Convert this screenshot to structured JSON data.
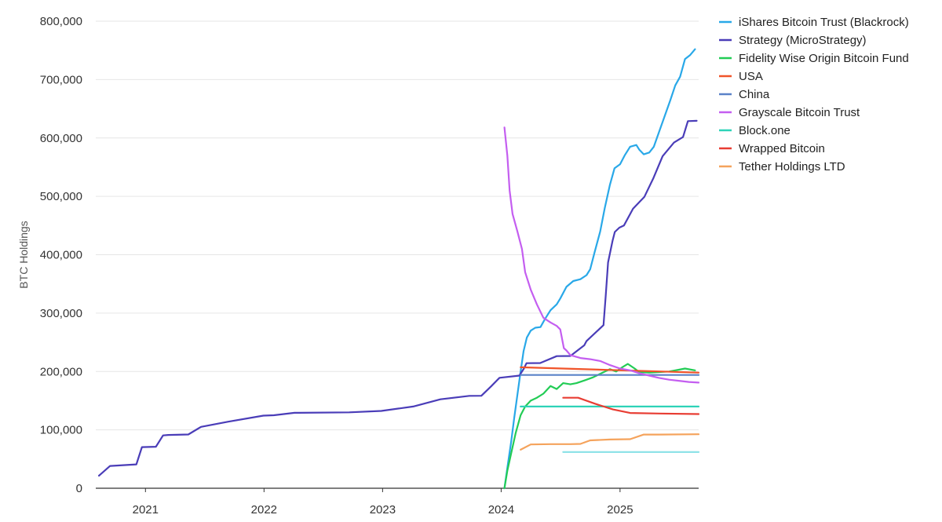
{
  "chart_data": {
    "type": "line",
    "title": "",
    "xlabel": "",
    "ylabel": "BTC Holdings",
    "x_ticks": [
      "2021",
      "2022",
      "2023",
      "2024",
      "2025"
    ],
    "y_ticks": [
      "0",
      "100,000",
      "200,000",
      "300,000",
      "400,000",
      "500,000",
      "600,000",
      "700,000",
      "800,000"
    ],
    "xlim": [
      "2020-08-01",
      "2025-08-31"
    ],
    "ylim": [
      0,
      800000
    ],
    "grid": "horizontal",
    "legend_position": "top-right",
    "series": [
      {
        "name": "iShares Bitcoin Trust (Blackrock)",
        "color": "#29a8e8",
        "points": [
          [
            "2024-01-11",
            0
          ],
          [
            "2024-01-20",
            35000
          ],
          [
            "2024-02-01",
            80000
          ],
          [
            "2024-02-10",
            120000
          ],
          [
            "2024-02-20",
            160000
          ],
          [
            "2024-03-01",
            200000
          ],
          [
            "2024-03-10",
            235000
          ],
          [
            "2024-03-20",
            258000
          ],
          [
            "2024-04-01",
            270000
          ],
          [
            "2024-04-15",
            275000
          ],
          [
            "2024-05-01",
            276000
          ],
          [
            "2024-05-15",
            290000
          ],
          [
            "2024-06-01",
            305000
          ],
          [
            "2024-06-20",
            315000
          ],
          [
            "2024-07-01",
            325000
          ],
          [
            "2024-07-20",
            345000
          ],
          [
            "2024-08-10",
            355000
          ],
          [
            "2024-09-01",
            358000
          ],
          [
            "2024-09-20",
            365000
          ],
          [
            "2024-10-01",
            375000
          ],
          [
            "2024-10-15",
            405000
          ],
          [
            "2024-11-01",
            440000
          ],
          [
            "2024-11-15",
            480000
          ],
          [
            "2024-12-01",
            520000
          ],
          [
            "2024-12-15",
            548000
          ],
          [
            "2025-01-01",
            555000
          ],
          [
            "2025-01-15",
            570000
          ],
          [
            "2025-02-01",
            585000
          ],
          [
            "2025-02-20",
            588000
          ],
          [
            "2025-03-01",
            580000
          ],
          [
            "2025-03-15",
            572000
          ],
          [
            "2025-04-01",
            575000
          ],
          [
            "2025-04-15",
            585000
          ],
          [
            "2025-05-01",
            610000
          ],
          [
            "2025-05-20",
            640000
          ],
          [
            "2025-06-05",
            665000
          ],
          [
            "2025-06-20",
            690000
          ],
          [
            "2025-07-05",
            705000
          ],
          [
            "2025-07-20",
            735000
          ],
          [
            "2025-08-05",
            742000
          ],
          [
            "2025-08-20",
            752000
          ]
        ]
      },
      {
        "name": "Strategy (MicroStrategy)",
        "color": "#4a3db8",
        "points": [
          [
            "2020-08-11",
            21454
          ],
          [
            "2020-09-14",
            38250
          ],
          [
            "2020-12-04",
            40824
          ],
          [
            "2020-12-21",
            70470
          ],
          [
            "2021-02-02",
            71079
          ],
          [
            "2021-02-24",
            90531
          ],
          [
            "2021-03-12",
            91326
          ],
          [
            "2021-05-13",
            92079
          ],
          [
            "2021-06-21",
            105085
          ],
          [
            "2021-09-13",
            114042
          ],
          [
            "2021-12-30",
            124391
          ],
          [
            "2022-01-31",
            125051
          ],
          [
            "2022-04-05",
            129218
          ],
          [
            "2022-09-20",
            130000
          ],
          [
            "2022-12-28",
            132500
          ],
          [
            "2023-04-05",
            140000
          ],
          [
            "2023-06-28",
            152333
          ],
          [
            "2023-09-25",
            158245
          ],
          [
            "2023-11-01",
            158400
          ],
          [
            "2023-12-01",
            174530
          ],
          [
            "2023-12-27",
            189150
          ],
          [
            "2024-02-26",
            193000
          ],
          [
            "2024-03-11",
            205000
          ],
          [
            "2024-03-19",
            214246
          ],
          [
            "2024-04-30",
            214400
          ],
          [
            "2024-06-20",
            226331
          ],
          [
            "2024-08-01",
            226500
          ],
          [
            "2024-09-13",
            244800
          ],
          [
            "2024-09-20",
            252220
          ],
          [
            "2024-11-11",
            279420
          ],
          [
            "2024-11-18",
            331200
          ],
          [
            "2024-11-25",
            386700
          ],
          [
            "2024-12-09",
            423650
          ],
          [
            "2024-12-16",
            439000
          ],
          [
            "2024-12-30",
            446400
          ],
          [
            "2025-01-13",
            450000
          ],
          [
            "2025-02-10",
            478740
          ],
          [
            "2025-03-17",
            499226
          ],
          [
            "2025-04-14",
            531644
          ],
          [
            "2025-05-12",
            568840
          ],
          [
            "2025-06-16",
            592100
          ],
          [
            "2025-07-14",
            601550
          ],
          [
            "2025-07-29",
            628791
          ],
          [
            "2025-08-25",
            629376
          ]
        ]
      },
      {
        "name": "Fidelity Wise Origin Bitcoin Fund",
        "color": "#22cc55",
        "points": [
          [
            "2024-01-11",
            0
          ],
          [
            "2024-01-20",
            30000
          ],
          [
            "2024-02-01",
            60000
          ],
          [
            "2024-02-15",
            95000
          ],
          [
            "2024-03-01",
            125000
          ],
          [
            "2024-03-15",
            140000
          ],
          [
            "2024-04-01",
            150000
          ],
          [
            "2024-04-20",
            155000
          ],
          [
            "2024-05-10",
            162000
          ],
          [
            "2024-06-01",
            175000
          ],
          [
            "2024-06-20",
            170000
          ],
          [
            "2024-07-10",
            180000
          ],
          [
            "2024-08-01",
            178000
          ],
          [
            "2024-08-20",
            180000
          ],
          [
            "2024-09-15",
            185000
          ],
          [
            "2024-10-10",
            190000
          ],
          [
            "2024-11-01",
            196000
          ],
          [
            "2024-12-01",
            204000
          ],
          [
            "2024-12-20",
            200000
          ],
          [
            "2025-01-10",
            208000
          ],
          [
            "2025-01-25",
            213000
          ],
          [
            "2025-02-15",
            205000
          ],
          [
            "2025-03-01",
            199000
          ],
          [
            "2025-04-01",
            198000
          ],
          [
            "2025-05-01",
            199000
          ],
          [
            "2025-06-01",
            200000
          ],
          [
            "2025-07-01",
            203000
          ],
          [
            "2025-07-20",
            205000
          ],
          [
            "2025-08-20",
            202000
          ]
        ]
      },
      {
        "name": "USA",
        "color": "#f0542a",
        "points": [
          [
            "2024-03-01",
            207189
          ],
          [
            "2025-08-31",
            198012
          ]
        ]
      },
      {
        "name": "China",
        "color": "#5a82c8",
        "points": [
          [
            "2024-03-01",
            194000
          ],
          [
            "2025-08-31",
            194000
          ]
        ]
      },
      {
        "name": "Grayscale Bitcoin Trust",
        "color": "#c45ef0",
        "points": [
          [
            "2024-01-11",
            618000
          ],
          [
            "2024-01-20",
            570000
          ],
          [
            "2024-01-27",
            510000
          ],
          [
            "2024-02-05",
            470000
          ],
          [
            "2024-02-20",
            440000
          ],
          [
            "2024-03-05",
            410000
          ],
          [
            "2024-03-15",
            370000
          ],
          [
            "2024-04-01",
            340000
          ],
          [
            "2024-04-20",
            315000
          ],
          [
            "2024-05-10",
            292000
          ],
          [
            "2024-06-01",
            284000
          ],
          [
            "2024-06-20",
            278000
          ],
          [
            "2024-07-01",
            272000
          ],
          [
            "2024-07-12",
            240000
          ],
          [
            "2024-07-20",
            236000
          ],
          [
            "2024-08-01",
            228000
          ],
          [
            "2024-09-01",
            223000
          ],
          [
            "2024-10-01",
            221000
          ],
          [
            "2024-11-01",
            218000
          ],
          [
            "2024-12-01",
            211000
          ],
          [
            "2025-01-01",
            205000
          ],
          [
            "2025-02-01",
            202000
          ],
          [
            "2025-03-01",
            197000
          ],
          [
            "2025-04-01",
            193000
          ],
          [
            "2025-05-01",
            189000
          ],
          [
            "2025-06-01",
            186000
          ],
          [
            "2025-07-01",
            184000
          ],
          [
            "2025-08-01",
            182000
          ],
          [
            "2025-08-31",
            181000
          ]
        ]
      },
      {
        "name": "Block.one",
        "color": "#2ed3b8",
        "points": [
          [
            "2024-03-01",
            140000
          ],
          [
            "2025-08-31",
            140000
          ]
        ]
      },
      {
        "name": "Wrapped Bitcoin",
        "color": "#e83d33",
        "points": [
          [
            "2024-07-10",
            155000
          ],
          [
            "2024-08-25",
            155000
          ],
          [
            "2024-10-15",
            145000
          ],
          [
            "2024-12-10",
            135000
          ],
          [
            "2025-02-01",
            129000
          ],
          [
            "2025-05-01",
            128000
          ],
          [
            "2025-08-31",
            127000
          ]
        ]
      },
      {
        "name": "Tether Holdings LTD",
        "color": "#f5a35c",
        "points": [
          [
            "2024-03-01",
            66000
          ],
          [
            "2024-04-01",
            75000
          ],
          [
            "2024-06-01",
            75500
          ],
          [
            "2024-08-01",
            75500
          ],
          [
            "2024-09-01",
            76000
          ],
          [
            "2024-10-01",
            82000
          ],
          [
            "2024-12-01",
            83500
          ],
          [
            "2025-02-01",
            84000
          ],
          [
            "2025-03-15",
            92000
          ],
          [
            "2025-05-01",
            92000
          ],
          [
            "2025-08-31",
            92500
          ]
        ]
      },
      {
        "name": "",
        "color": "#8fe3e8",
        "points": [
          [
            "2024-07-10",
            62000
          ],
          [
            "2025-08-31",
            62000
          ]
        ]
      }
    ]
  }
}
